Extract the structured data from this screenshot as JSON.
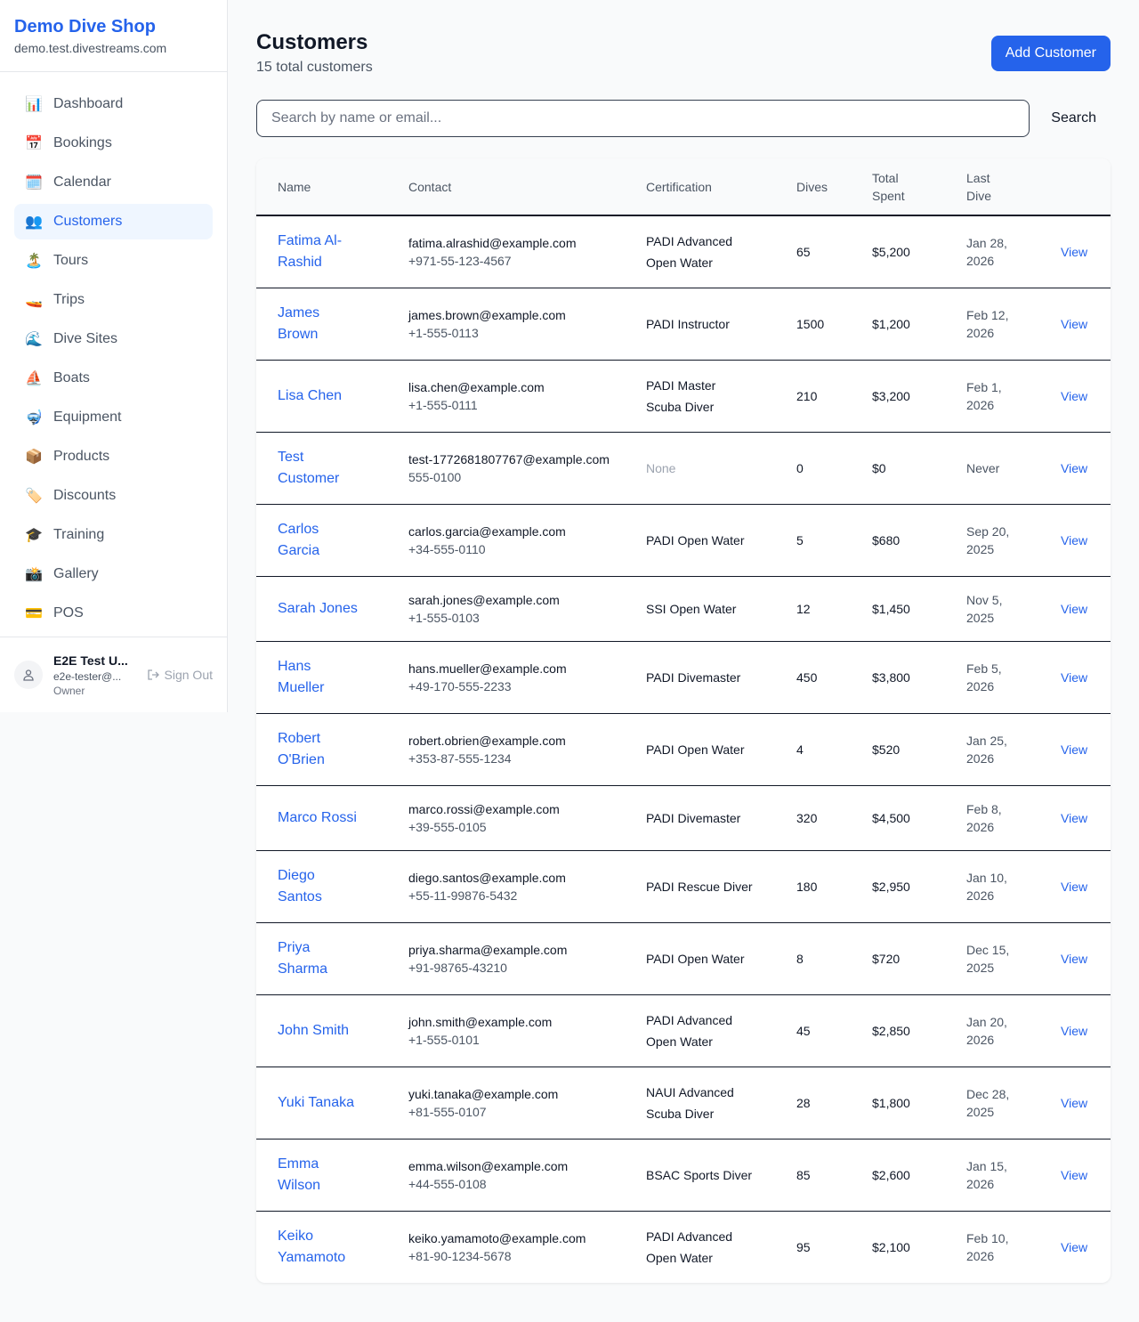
{
  "sidebar": {
    "brand": "Demo Dive Shop",
    "domain": "demo.test.divestreams.com",
    "items": [
      {
        "label": "Dashboard",
        "icon": "📊",
        "active": false
      },
      {
        "label": "Bookings",
        "icon": "📅",
        "active": false
      },
      {
        "label": "Calendar",
        "icon": "🗓️",
        "active": false
      },
      {
        "label": "Customers",
        "icon": "👥",
        "active": true
      },
      {
        "label": "Tours",
        "icon": "🏝️",
        "active": false
      },
      {
        "label": "Trips",
        "icon": "🚤",
        "active": false
      },
      {
        "label": "Dive Sites",
        "icon": "🌊",
        "active": false
      },
      {
        "label": "Boats",
        "icon": "⛵",
        "active": false
      },
      {
        "label": "Equipment",
        "icon": "🤿",
        "active": false
      },
      {
        "label": "Products",
        "icon": "📦",
        "active": false
      },
      {
        "label": "Discounts",
        "icon": "🏷️",
        "active": false
      },
      {
        "label": "Training",
        "icon": "🎓",
        "active": false
      },
      {
        "label": "Gallery",
        "icon": "📸",
        "active": false
      },
      {
        "label": "POS",
        "icon": "💳",
        "active": false
      }
    ],
    "user": {
      "name": "E2E Test U...",
      "email": "e2e-tester@...",
      "role": "Owner",
      "sign_out": "Sign Out"
    }
  },
  "header": {
    "title": "Customers",
    "subtitle": "15 total customers",
    "add_button": "Add Customer"
  },
  "search": {
    "placeholder": "Search by name or email...",
    "value": "",
    "button": "Search"
  },
  "table": {
    "columns": [
      "Name",
      "Contact",
      "Certification",
      "Dives",
      "Total Spent",
      "Last Dive",
      ""
    ],
    "view_label": "View",
    "rows": [
      {
        "name": "Fatima Al-Rashid",
        "email": "fatima.alrashid@example.com",
        "phone": "+971-55-123-4567",
        "cert": "PADI Advanced Open Water",
        "dives": "65",
        "spent": "$5,200",
        "last": "Jan 28, 2026"
      },
      {
        "name": "James Brown",
        "email": "james.brown@example.com",
        "phone": "+1-555-0113",
        "cert": "PADI Instructor",
        "dives": "1500",
        "spent": "$1,200",
        "last": "Feb 12, 2026"
      },
      {
        "name": "Lisa Chen",
        "email": "lisa.chen@example.com",
        "phone": "+1-555-0111",
        "cert": "PADI Master Scuba Diver",
        "dives": "210",
        "spent": "$3,200",
        "last": "Feb 1, 2026"
      },
      {
        "name": "Test Customer",
        "email": "test-1772681807767@example.com",
        "phone": "555-0100",
        "cert": "None",
        "dives": "0",
        "spent": "$0",
        "last": "Never"
      },
      {
        "name": "Carlos Garcia",
        "email": "carlos.garcia@example.com",
        "phone": "+34-555-0110",
        "cert": "PADI Open Water",
        "dives": "5",
        "spent": "$680",
        "last": "Sep 20, 2025"
      },
      {
        "name": "Sarah Jones",
        "email": "sarah.jones@example.com",
        "phone": "+1-555-0103",
        "cert": "SSI Open Water",
        "dives": "12",
        "spent": "$1,450",
        "last": "Nov 5, 2025"
      },
      {
        "name": "Hans Mueller",
        "email": "hans.mueller@example.com",
        "phone": "+49-170-555-2233",
        "cert": "PADI Divemaster",
        "dives": "450",
        "spent": "$3,800",
        "last": "Feb 5, 2026"
      },
      {
        "name": "Robert O'Brien",
        "email": "robert.obrien@example.com",
        "phone": "+353-87-555-1234",
        "cert": "PADI Open Water",
        "dives": "4",
        "spent": "$520",
        "last": "Jan 25, 2026"
      },
      {
        "name": "Marco Rossi",
        "email": "marco.rossi@example.com",
        "phone": "+39-555-0105",
        "cert": "PADI Divemaster",
        "dives": "320",
        "spent": "$4,500",
        "last": "Feb 8, 2026"
      },
      {
        "name": "Diego Santos",
        "email": "diego.santos@example.com",
        "phone": "+55-11-99876-5432",
        "cert": "PADI Rescue Diver",
        "dives": "180",
        "spent": "$2,950",
        "last": "Jan 10, 2026"
      },
      {
        "name": "Priya Sharma",
        "email": "priya.sharma@example.com",
        "phone": "+91-98765-43210",
        "cert": "PADI Open Water",
        "dives": "8",
        "spent": "$720",
        "last": "Dec 15, 2025"
      },
      {
        "name": "John Smith",
        "email": "john.smith@example.com",
        "phone": "+1-555-0101",
        "cert": "PADI Advanced Open Water",
        "dives": "45",
        "spent": "$2,850",
        "last": "Jan 20, 2026"
      },
      {
        "name": "Yuki Tanaka",
        "email": "yuki.tanaka@example.com",
        "phone": "+81-555-0107",
        "cert": "NAUI Advanced Scuba Diver",
        "dives": "28",
        "spent": "$1,800",
        "last": "Dec 28, 2025"
      },
      {
        "name": "Emma Wilson",
        "email": "emma.wilson@example.com",
        "phone": "+44-555-0108",
        "cert": "BSAC Sports Diver",
        "dives": "85",
        "spent": "$2,600",
        "last": "Jan 15, 2026"
      },
      {
        "name": "Keiko Yamamoto",
        "email": "keiko.yamamoto@example.com",
        "phone": "+81-90-1234-5678",
        "cert": "PADI Advanced Open Water",
        "dives": "95",
        "spent": "$2,100",
        "last": "Feb 10, 2026"
      }
    ]
  }
}
